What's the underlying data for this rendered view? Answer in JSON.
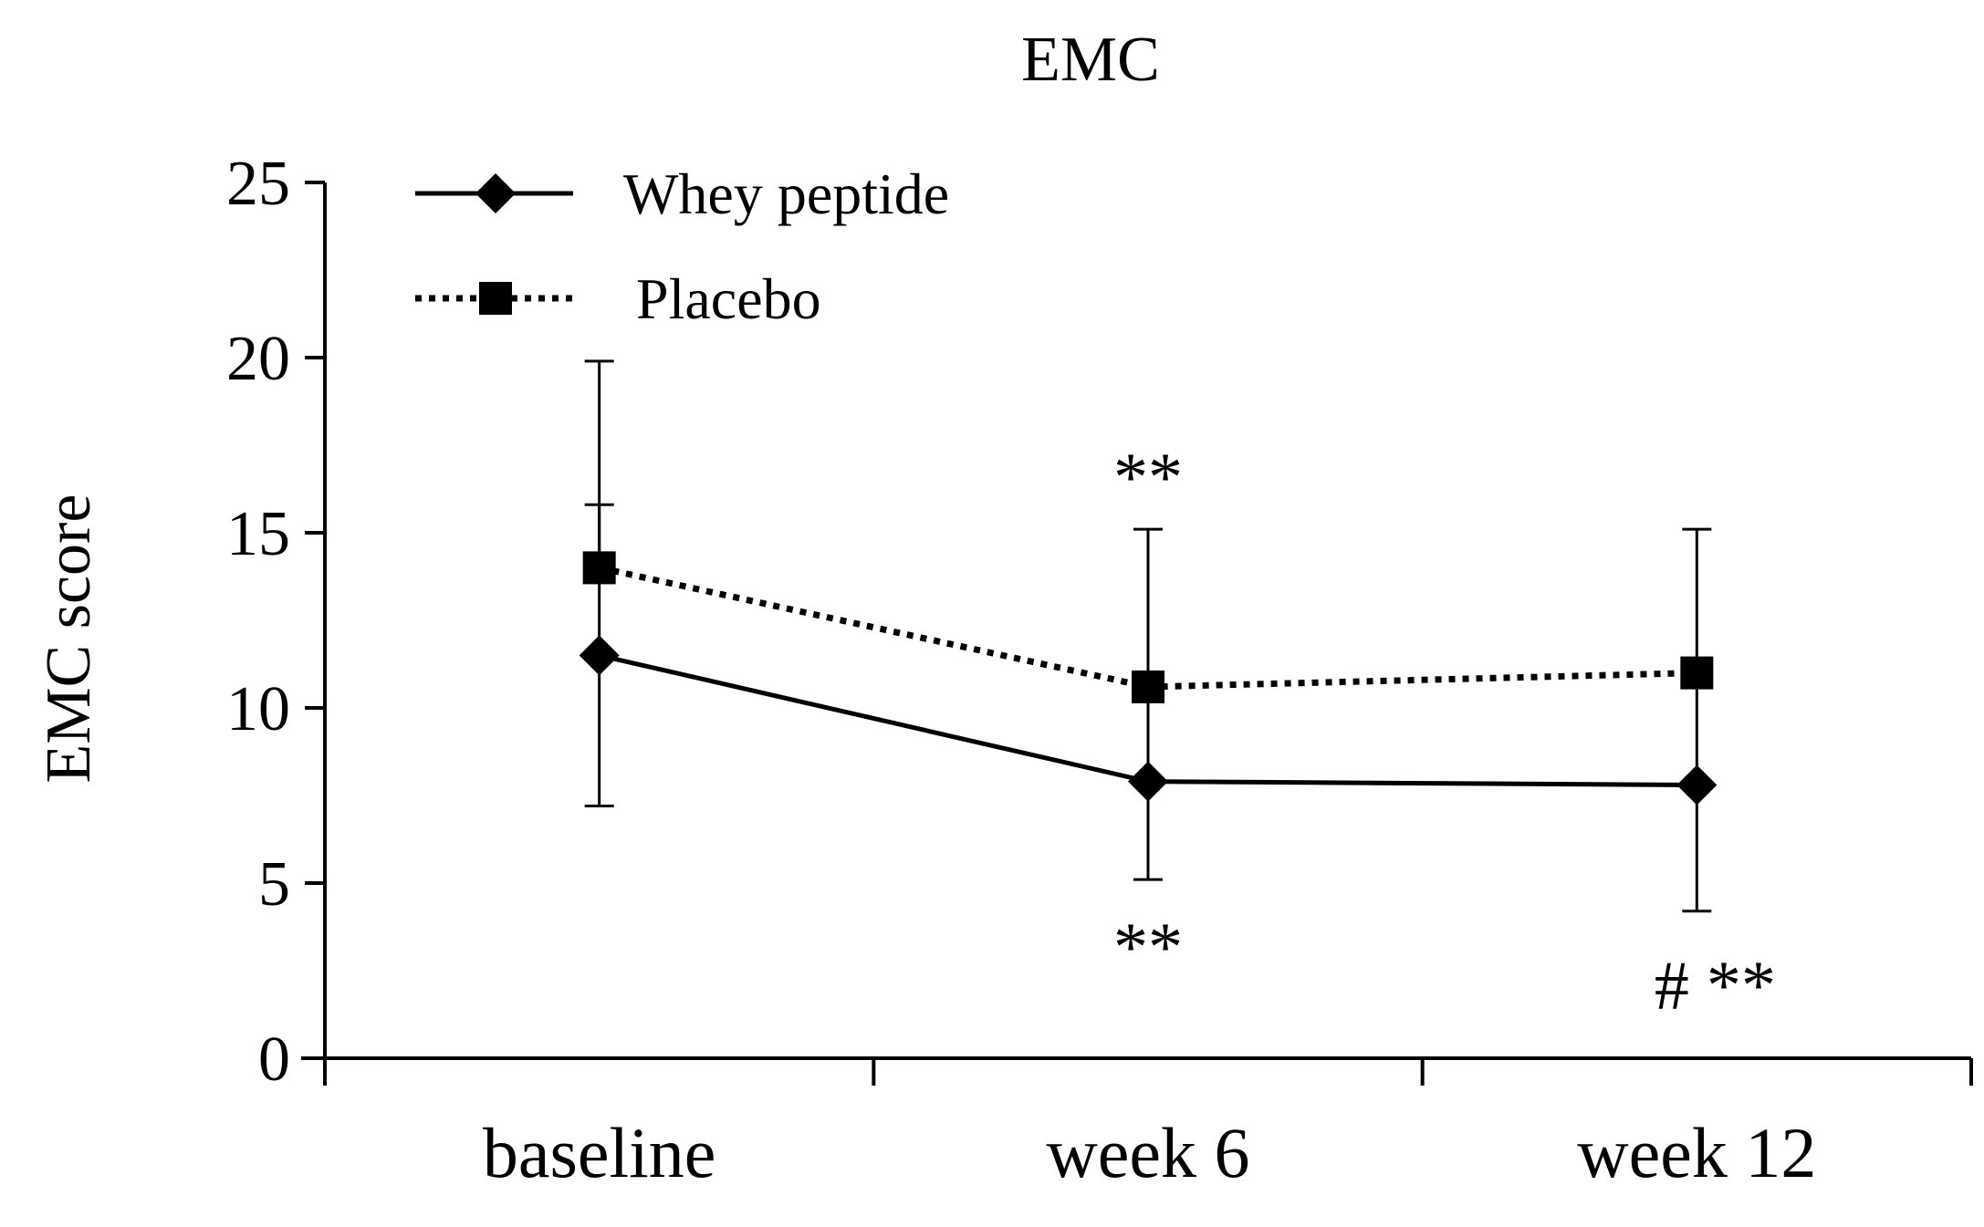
{
  "chart_data": {
    "type": "line",
    "title": "EMC",
    "xlabel": "",
    "ylabel": "EMC score",
    "categories": [
      "baseline",
      "week 6",
      "week 12"
    ],
    "ylim": [
      0,
      25
    ],
    "yticks": [
      0,
      5,
      10,
      15,
      20,
      25
    ],
    "grid": false,
    "legend": "top-left",
    "series": [
      {
        "name": "Whey peptide",
        "marker": "diamond",
        "line_style": "solid",
        "values": [
          11.5,
          7.9,
          7.8
        ],
        "error_direction": "both",
        "errors": [
          4.3,
          2.8,
          3.6
        ],
        "color": "#000000"
      },
      {
        "name": "Placebo",
        "marker": "square",
        "line_style": "dotted",
        "values": [
          14.0,
          10.6,
          11.0
        ],
        "error_direction": "up",
        "errors": [
          5.9,
          4.5,
          4.1
        ],
        "color": "#000000"
      }
    ],
    "annotations": [
      {
        "text": "**",
        "category": "week 6",
        "position": "above",
        "y": 16.7
      },
      {
        "text": "**",
        "category": "week 6",
        "position": "below",
        "y": 3.3
      },
      {
        "text": "# **",
        "category": "week 12",
        "position": "below",
        "y": 2.2
      }
    ]
  }
}
